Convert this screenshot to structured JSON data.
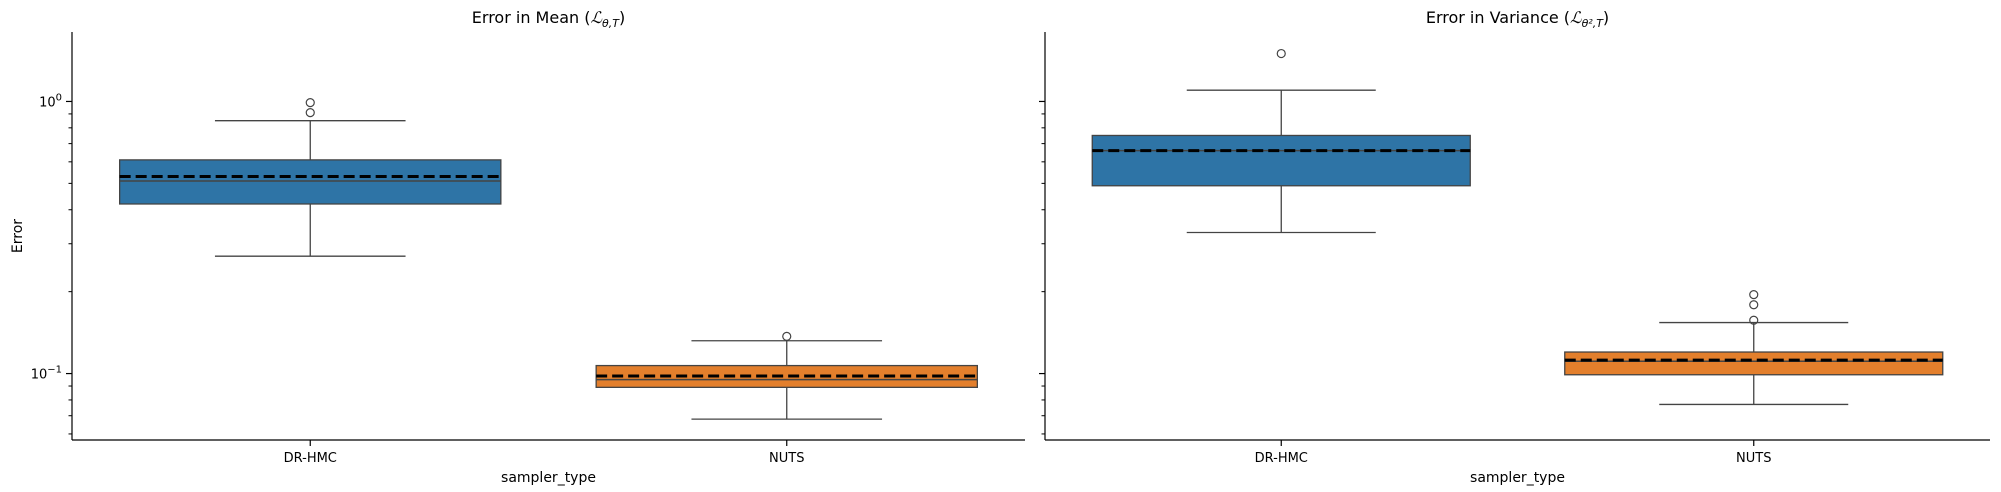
{
  "chart_data": [
    {
      "type": "box",
      "title": "Error in Mean (ℒθ,T)",
      "title_parts": [
        "Error in Mean (",
        "ℒ",
        "θ,T",
        ")"
      ],
      "xlabel": "sampler_type",
      "ylabel": "Error",
      "yscale": "log",
      "ylim": [
        0.057,
        1.8
      ],
      "yticks": [
        {
          "value": 0.1,
          "base": "10",
          "exp": "−1"
        },
        {
          "value": 1,
          "base": "10",
          "exp": "0"
        }
      ],
      "categories": [
        "DR-HMC",
        "NUTS"
      ],
      "colors": [
        "#2e74a6",
        "#e37f2c"
      ],
      "mean_line": "dashed black line",
      "boxes": [
        {
          "category": "DR-HMC",
          "whisker_low": 0.27,
          "q1": 0.42,
          "median": 0.51,
          "mean": 0.53,
          "q3": 0.61,
          "whisker_high": 0.85,
          "outliers": [
            0.91,
            0.99
          ]
        },
        {
          "category": "NUTS",
          "whisker_low": 0.068,
          "q1": 0.089,
          "median": 0.095,
          "mean": 0.098,
          "q3": 0.107,
          "whisker_high": 0.132,
          "outliers": [
            0.137
          ]
        }
      ]
    },
    {
      "type": "box",
      "title": "Error in Variance (ℒθ²,T)",
      "title_parts": [
        "Error in Variance (",
        "ℒ",
        "θ²,T",
        ")"
      ],
      "xlabel": "sampler_type",
      "ylabel": "",
      "yscale": "log",
      "ylim": [
        0.057,
        1.8
      ],
      "categories": [
        "DR-HMC",
        "NUTS"
      ],
      "colors": [
        "#2e74a6",
        "#e37f2c"
      ],
      "mean_line": "dashed black line",
      "boxes": [
        {
          "category": "DR-HMC",
          "whisker_low": 0.33,
          "q1": 0.49,
          "median": 0.66,
          "mean": 0.66,
          "q3": 0.75,
          "whisker_high": 1.1,
          "outliers": [
            1.5
          ]
        },
        {
          "category": "NUTS",
          "whisker_low": 0.077,
          "q1": 0.099,
          "median": 0.111,
          "mean": 0.112,
          "q3": 0.12,
          "whisker_high": 0.154,
          "outliers": [
            0.157,
            0.179,
            0.195
          ]
        }
      ]
    }
  ]
}
